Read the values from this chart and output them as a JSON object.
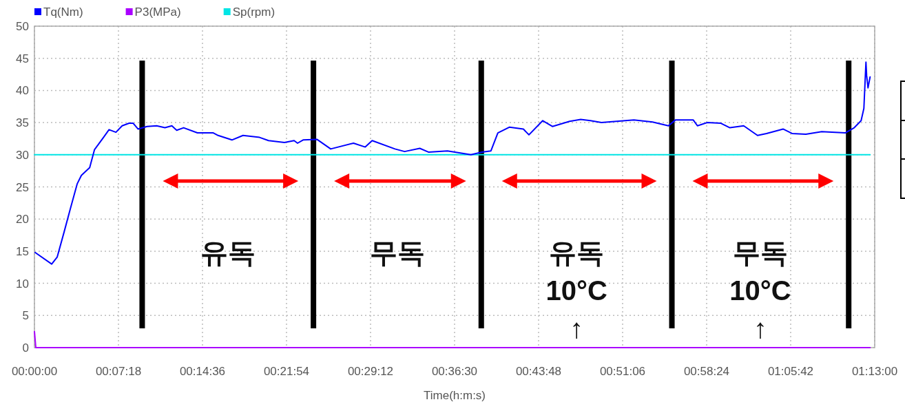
{
  "chart_data": {
    "type": "line",
    "xlabel": "Time(h:m:s)",
    "xlim": [
      0,
      1.21667
    ],
    "ylim": [
      0,
      50
    ],
    "xticks": [
      {
        "value": 0,
        "label": "00:00:00"
      },
      {
        "value": 0.121667,
        "label": "00:07:18"
      },
      {
        "value": 0.243333,
        "label": "00:14:36"
      },
      {
        "value": 0.365,
        "label": "00:21:54"
      },
      {
        "value": 0.486667,
        "label": "00:29:12"
      },
      {
        "value": 0.608333,
        "label": "00:36:30"
      },
      {
        "value": 0.73,
        "label": "00:43:48"
      },
      {
        "value": 0.851667,
        "label": "00:51:06"
      },
      {
        "value": 0.973333,
        "label": "00:58:24"
      },
      {
        "value": 1.095,
        "label": "01:05:42"
      },
      {
        "value": 1.21667,
        "label": "01:13:00"
      }
    ],
    "yticks": [
      0,
      5,
      10,
      15,
      20,
      25,
      30,
      35,
      40,
      45,
      50
    ],
    "grid": true,
    "legend": "top left",
    "marker": "none",
    "line_style": "solid",
    "series": [
      {
        "name": "Tq(Nm)",
        "color": "#0000ff",
        "x": [
          0.001,
          0.025,
          0.033,
          0.043,
          0.052,
          0.062,
          0.068,
          0.08,
          0.087,
          0.1,
          0.108,
          0.118,
          0.127,
          0.137,
          0.143,
          0.15,
          0.163,
          0.177,
          0.189,
          0.199,
          0.206,
          0.216,
          0.236,
          0.259,
          0.266,
          0.286,
          0.302,
          0.326,
          0.339,
          0.362,
          0.376,
          0.381,
          0.389,
          0.409,
          0.429,
          0.462,
          0.479,
          0.489,
          0.522,
          0.536,
          0.558,
          0.571,
          0.598,
          0.632,
          0.648,
          0.661,
          0.671,
          0.688,
          0.708,
          0.716,
          0.736,
          0.75,
          0.775,
          0.791,
          0.805,
          0.821,
          0.868,
          0.895,
          0.918,
          0.928,
          0.954,
          0.96,
          0.974,
          0.994,
          1.007,
          1.027,
          1.047,
          1.06,
          1.084,
          1.097,
          1.117,
          1.14,
          1.174,
          1.187,
          1.197,
          1.201,
          1.204,
          1.205,
          1.207,
          1.21
        ],
        "values": [
          14.8,
          13.0,
          14.1,
          18.0,
          21.6,
          25.5,
          26.8,
          28.0,
          30.8,
          32.7,
          33.9,
          33.5,
          34.5,
          34.9,
          34.9,
          34.0,
          34.4,
          34.5,
          34.2,
          34.5,
          33.8,
          34.2,
          33.4,
          33.4,
          33.0,
          32.3,
          33.0,
          32.7,
          32.2,
          31.9,
          32.2,
          31.8,
          32.3,
          32.4,
          30.9,
          31.8,
          31.2,
          32.2,
          30.9,
          30.5,
          31.0,
          30.4,
          30.6,
          30.0,
          30.4,
          30.6,
          33.4,
          34.3,
          34.0,
          33.1,
          35.3,
          34.4,
          35.2,
          35.5,
          35.3,
          35.0,
          35.4,
          35.1,
          34.5,
          35.4,
          35.4,
          34.5,
          35.0,
          34.9,
          34.2,
          34.5,
          33.0,
          33.3,
          34.0,
          33.3,
          33.2,
          33.6,
          33.4,
          34.2,
          35.3,
          37.2,
          44.4,
          42.3,
          40.4,
          42.1
        ]
      },
      {
        "name": "P3(MPa)",
        "color": "#aa00ff",
        "x": [
          0,
          0.002,
          1.21
        ],
        "values": [
          2.5,
          0,
          0
        ]
      },
      {
        "name": "Sp(rpm)",
        "color": "#00e5e5",
        "x": [
          0,
          1.21
        ],
        "values": [
          30,
          30
        ]
      }
    ],
    "ref_lines": [
      {
        "axis": "x",
        "value": 0.156,
        "color": "#000000"
      },
      {
        "axis": "x",
        "value": 0.404,
        "color": "#000000"
      },
      {
        "axis": "x",
        "value": 0.647,
        "color": "#000000"
      },
      {
        "axis": "x",
        "value": 0.923,
        "color": "#000000"
      },
      {
        "axis": "x",
        "value": 1.179,
        "color": "#000000"
      }
    ],
    "annotations": [
      "유독",
      "무독",
      "유독\n10°C\n↑",
      "무독\n10°C\n↑"
    ]
  }
}
